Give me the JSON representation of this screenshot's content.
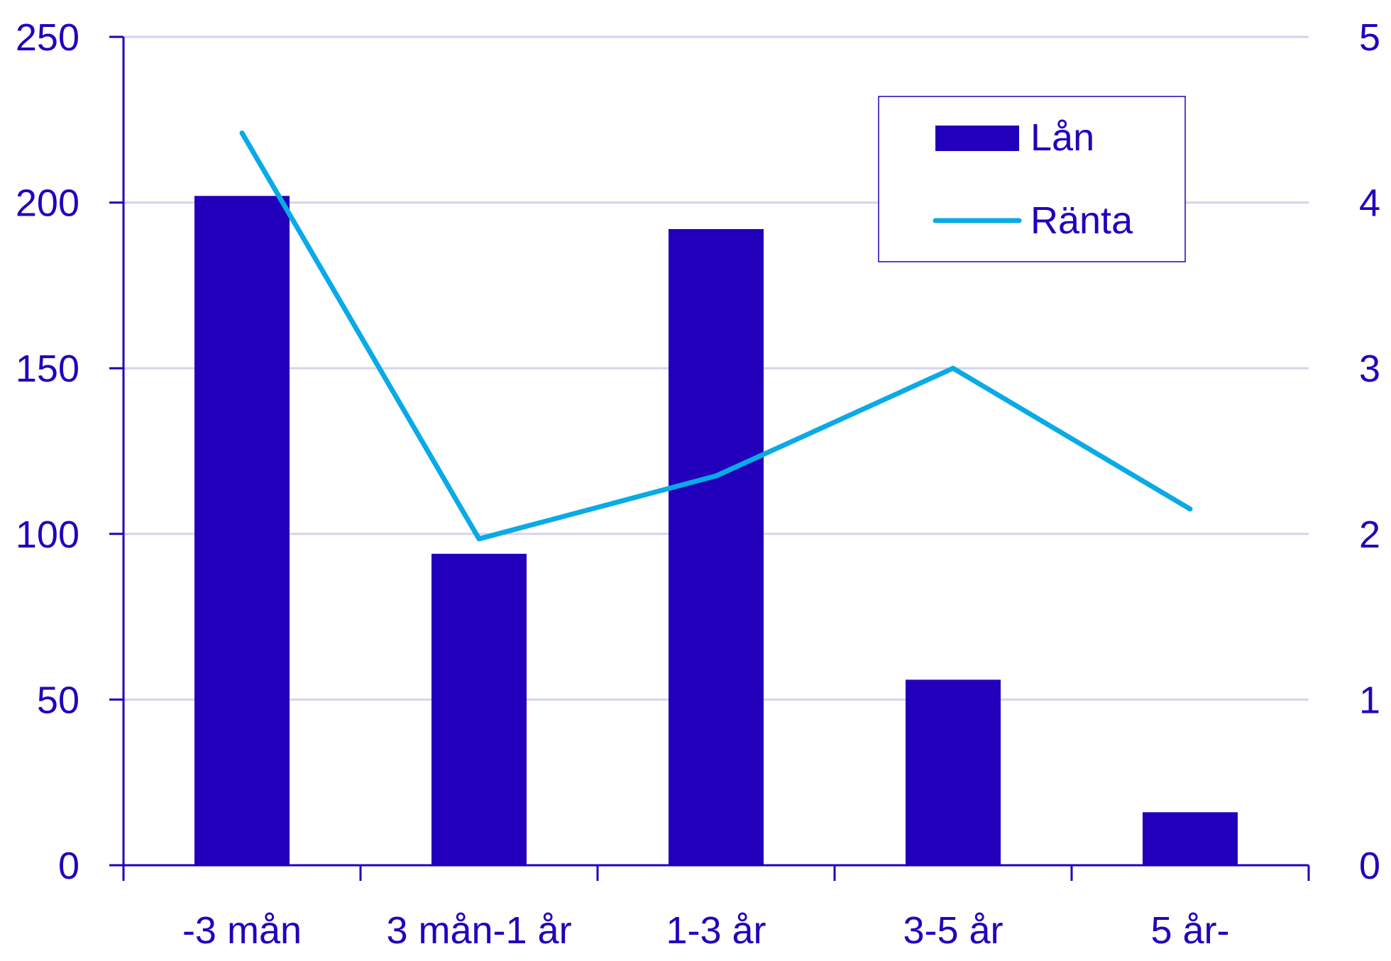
{
  "colors": {
    "bar": "#2200bb",
    "line": "#0aaae6",
    "grid": "#d6d3ec",
    "axis": "#2200bb",
    "text": "#2200bb",
    "legend_border": "#2200bb"
  },
  "chart_data": {
    "type": "bar",
    "categories": [
      "-3 mån",
      "3 mån-1 år",
      "1-3 år",
      "3-5 år",
      "5 år-"
    ],
    "series": [
      {
        "name": "Lån",
        "type": "bar",
        "axis": "left",
        "values": [
          202,
          94,
          192,
          56,
          16
        ]
      },
      {
        "name": "Ränta",
        "type": "line",
        "axis": "right",
        "values": [
          4.42,
          1.97,
          2.35,
          3.0,
          2.15
        ]
      }
    ],
    "left_axis": {
      "ylim": [
        0,
        250
      ],
      "ticks": [
        "0",
        "50",
        "100",
        "150",
        "200",
        "250"
      ]
    },
    "right_axis": {
      "ylim": [
        0,
        5
      ],
      "ticks": [
        "0",
        "1",
        "2",
        "3",
        "4",
        "5"
      ]
    },
    "grid": true,
    "legend_position": "top-right"
  }
}
